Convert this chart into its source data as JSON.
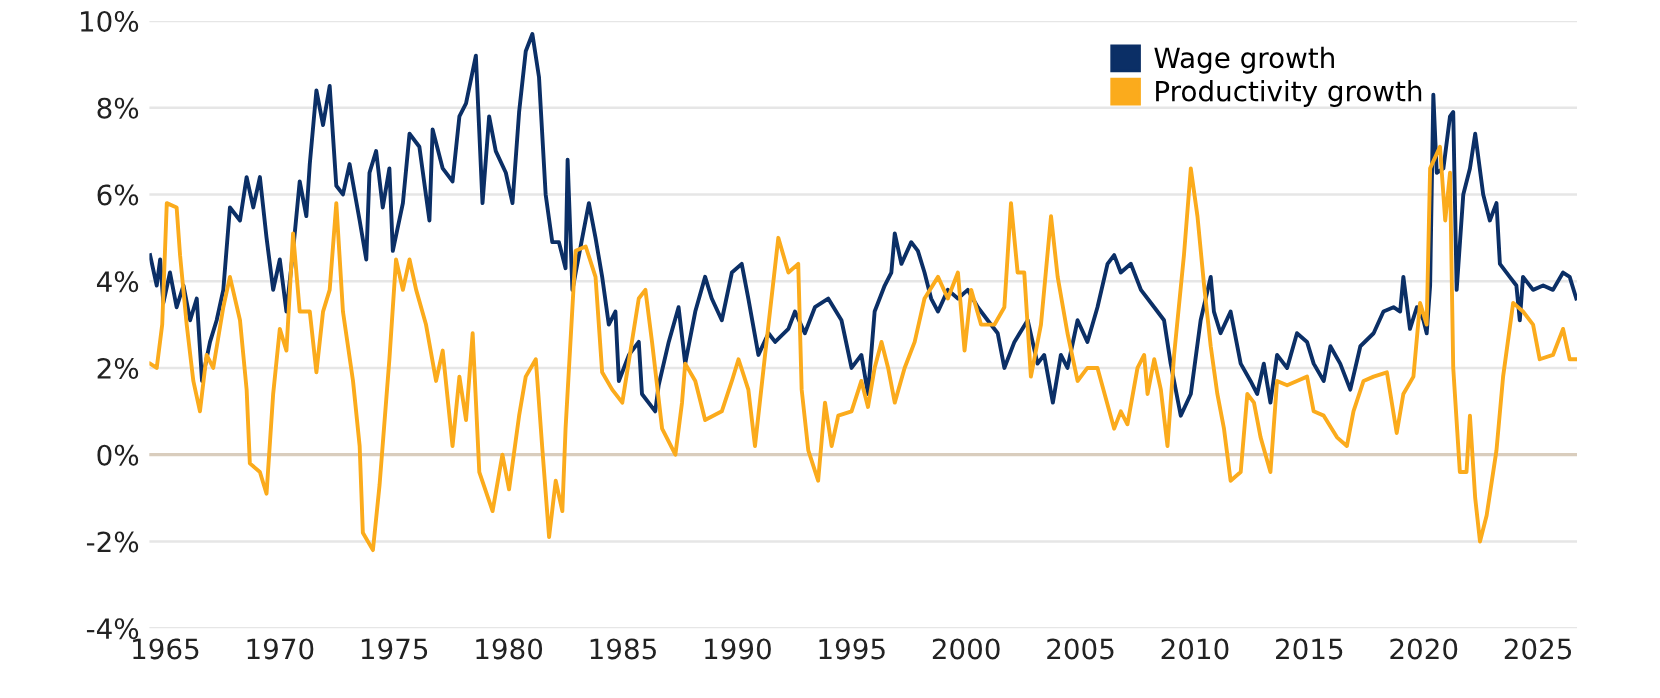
{
  "chart_data": {
    "type": "line",
    "xlim": [
      1964.3,
      2026.7
    ],
    "xticks": [
      1965,
      1970,
      1975,
      1980,
      1985,
      1990,
      1995,
      2000,
      2005,
      2010,
      2015,
      2020,
      2025
    ],
    "ylim": [
      -4,
      10
    ],
    "yticks": [
      {
        "value": -4,
        "label": "-4%"
      },
      {
        "value": -2,
        "label": "-2%"
      },
      {
        "value": 0,
        "label": "0%"
      },
      {
        "value": 2,
        "label": "2%"
      },
      {
        "value": 4,
        "label": "4%"
      },
      {
        "value": 6,
        "label": "6%"
      },
      {
        "value": 8,
        "label": "8%"
      },
      {
        "value": 10,
        "label": "10%"
      }
    ],
    "grid": "y",
    "legend": "top right",
    "marker": "none",
    "line_style": "solid",
    "ref_lines": [
      {
        "axis": "y",
        "value": 0,
        "color": "#d9cdbd"
      }
    ],
    "series": [
      {
        "name": "Wage growth",
        "color": "#0b2f66",
        "x": [
          1964.33,
          1964.62,
          1964.77,
          1964.91,
          1965.2,
          1965.49,
          1965.79,
          1966.08,
          1966.37,
          1966.6,
          1966.95,
          1967.24,
          1967.53,
          1967.82,
          1968.26,
          1968.55,
          1968.84,
          1969.13,
          1969.42,
          1969.71,
          1970.0,
          1970.29,
          1970.58,
          1970.87,
          1971.16,
          1971.31,
          1971.6,
          1971.89,
          1972.18,
          1972.47,
          1972.76,
          1973.05,
          1973.49,
          1973.78,
          1973.92,
          1974.21,
          1974.5,
          1974.79,
          1974.94,
          1975.38,
          1975.67,
          1976.1,
          1976.54,
          1976.68,
          1977.12,
          1977.55,
          1977.85,
          1978.14,
          1978.57,
          1978.86,
          1979.15,
          1979.44,
          1979.88,
          1980.17,
          1980.46,
          1980.75,
          1981.04,
          1981.33,
          1981.62,
          1981.91,
          1982.2,
          1982.49,
          1982.58,
          1982.79,
          1983.22,
          1983.51,
          1983.8,
          1984.09,
          1984.38,
          1984.67,
          1984.82,
          1985.26,
          1985.69,
          1985.83,
          1986.41,
          1986.56,
          1987.0,
          1987.43,
          1987.72,
          1988.16,
          1988.59,
          1988.88,
          1989.32,
          1989.76,
          1990.19,
          1990.48,
          1990.92,
          1991.36,
          1991.65,
          1992.23,
          1992.52,
          1992.95,
          1993.39,
          1993.97,
          1994.55,
          1994.99,
          1995.42,
          1995.71,
          1996.0,
          1996.44,
          1996.73,
          1996.88,
          1997.17,
          1997.6,
          1997.89,
          1998.18,
          1998.47,
          1998.77,
          1999.2,
          1999.64,
          2000.07,
          2000.51,
          2000.94,
          2001.38,
          2001.67,
          2002.11,
          2002.69,
          2003.12,
          2003.41,
          2003.79,
          2004.14,
          2004.43,
          2004.87,
          2005.3,
          2005.74,
          2006.18,
          2006.47,
          2006.76,
          2007.2,
          2007.64,
          2008.22,
          2008.65,
          2008.94,
          2009.38,
          2009.82,
          2010.25,
          2010.69,
          2010.83,
          2011.12,
          2011.56,
          2012.0,
          2012.43,
          2012.72,
          2013.01,
          2013.3,
          2013.59,
          2014.03,
          2014.46,
          2014.9,
          2015.19,
          2015.63,
          2015.92,
          2016.35,
          2016.79,
          2017.23,
          2017.81,
          2018.24,
          2018.68,
          2018.97,
          2019.11,
          2019.4,
          2019.7,
          2019.99,
          2020.13,
          2020.28,
          2020.42,
          2020.57,
          2020.86,
          2021.15,
          2021.29,
          2021.44,
          2021.73,
          2022.02,
          2022.25,
          2022.6,
          2022.89,
          2023.18,
          2023.33,
          2023.76,
          2024.05,
          2024.2,
          2024.34,
          2024.78,
          2025.22,
          2025.65,
          2026.09,
          2026.38,
          2026.67
        ],
        "values": [
          4.6,
          3.9,
          4.5,
          3.5,
          4.2,
          3.4,
          3.9,
          3.1,
          3.6,
          1.7,
          2.6,
          3.1,
          3.8,
          5.7,
          5.4,
          6.4,
          5.7,
          6.4,
          5.0,
          3.8,
          4.5,
          3.3,
          4.7,
          6.3,
          5.5,
          6.7,
          8.4,
          7.6,
          8.5,
          6.2,
          6.0,
          6.7,
          5.4,
          4.5,
          6.5,
          7.0,
          5.7,
          6.6,
          4.7,
          5.8,
          7.4,
          7.1,
          5.4,
          7.5,
          6.6,
          6.3,
          7.8,
          8.1,
          9.2,
          5.8,
          7.8,
          7.0,
          6.5,
          5.8,
          7.9,
          9.3,
          9.7,
          8.7,
          6.0,
          4.9,
          4.9,
          4.3,
          6.8,
          3.8,
          5.0,
          5.8,
          5.0,
          4.1,
          3.0,
          3.3,
          1.7,
          2.3,
          2.6,
          1.4,
          1.0,
          1.6,
          2.6,
          3.4,
          2.1,
          3.3,
          4.1,
          3.6,
          3.1,
          4.2,
          4.4,
          3.6,
          2.3,
          2.8,
          2.6,
          2.9,
          3.3,
          2.8,
          3.4,
          3.6,
          3.1,
          2.0,
          2.3,
          1.4,
          3.3,
          3.9,
          4.2,
          5.1,
          4.4,
          4.9,
          4.7,
          4.2,
          3.6,
          3.3,
          3.8,
          3.6,
          3.8,
          3.4,
          3.1,
          2.8,
          2.0,
          2.6,
          3.1,
          2.1,
          2.3,
          1.2,
          2.3,
          2.0,
          3.1,
          2.6,
          3.4,
          4.4,
          4.6,
          4.2,
          4.4,
          3.8,
          3.4,
          3.1,
          2.1,
          0.9,
          1.4,
          3.1,
          4.1,
          3.3,
          2.8,
          3.3,
          2.1,
          1.7,
          1.4,
          2.1,
          1.2,
          2.3,
          2.0,
          2.8,
          2.6,
          2.1,
          1.7,
          2.5,
          2.1,
          1.5,
          2.5,
          2.8,
          3.3,
          3.4,
          3.3,
          4.1,
          2.9,
          3.4,
          3.1,
          2.8,
          3.9,
          8.3,
          6.5,
          6.6,
          7.8,
          7.9,
          3.8,
          6.0,
          6.6,
          7.4,
          6.0,
          5.4,
          5.8,
          4.4,
          4.1,
          3.9,
          3.1,
          4.1,
          3.8,
          3.9,
          3.8,
          4.2,
          4.1,
          3.6
        ]
      },
      {
        "name": "Productivity growth",
        "color": "#fbab1c",
        "x": [
          1964.33,
          1964.62,
          1964.86,
          1965.06,
          1965.49,
          1965.64,
          1965.93,
          1966.22,
          1966.51,
          1966.8,
          1967.09,
          1967.53,
          1967.82,
          1968.26,
          1968.55,
          1968.69,
          1969.13,
          1969.42,
          1969.71,
          1970.0,
          1970.29,
          1970.58,
          1970.87,
          1971.31,
          1971.6,
          1971.89,
          1972.18,
          1972.47,
          1972.76,
          1973.2,
          1973.49,
          1973.63,
          1974.07,
          1974.36,
          1974.79,
          1975.08,
          1975.38,
          1975.67,
          1975.96,
          1976.39,
          1976.83,
          1977.12,
          1977.55,
          1977.85,
          1978.14,
          1978.43,
          1978.72,
          1979.3,
          1979.73,
          1980.02,
          1980.46,
          1980.75,
          1981.19,
          1981.48,
          1981.77,
          1982.06,
          1982.35,
          1982.49,
          1982.93,
          1983.37,
          1983.8,
          1984.09,
          1984.53,
          1984.97,
          1985.69,
          1985.98,
          1986.27,
          1986.71,
          1987.29,
          1987.58,
          1987.72,
          1988.16,
          1988.59,
          1989.32,
          1989.76,
          1990.05,
          1990.48,
          1990.77,
          1991.21,
          1991.79,
          1992.23,
          1992.66,
          1992.81,
          1993.1,
          1993.53,
          1993.83,
          1994.12,
          1994.41,
          1994.99,
          1995.42,
          1995.71,
          1996.0,
          1996.3,
          1996.59,
          1996.88,
          1997.31,
          1997.75,
          1998.18,
          1998.77,
          1999.2,
          1999.64,
          1999.93,
          2000.22,
          2000.65,
          2001.24,
          2001.67,
          2001.96,
          2002.25,
          2002.54,
          2002.83,
          2003.27,
          2003.71,
          2004.0,
          2004.43,
          2004.87,
          2005.3,
          2005.74,
          2006.47,
          2006.76,
          2007.05,
          2007.49,
          2007.78,
          2007.93,
          2008.22,
          2008.51,
          2008.8,
          2009.09,
          2009.52,
          2009.82,
          2010.11,
          2010.4,
          2010.69,
          2010.98,
          2011.27,
          2011.56,
          2012.0,
          2012.29,
          2012.58,
          2012.87,
          2013.3,
          2013.59,
          2014.03,
          2014.46,
          2014.9,
          2015.19,
          2015.63,
          2016.21,
          2016.64,
          2016.93,
          2017.37,
          2017.81,
          2018.39,
          2018.82,
          2019.11,
          2019.55,
          2019.84,
          2020.13,
          2020.28,
          2020.71,
          2020.94,
          2021.15,
          2021.29,
          2021.58,
          2021.87,
          2022.02,
          2022.25,
          2022.46,
          2022.75,
          2023.18,
          2023.47,
          2023.91,
          2024.34,
          2024.78,
          2025.07,
          2025.65,
          2026.09,
          2026.38,
          2026.67
        ],
        "values": [
          2.1,
          2.0,
          3.0,
          5.8,
          5.7,
          4.6,
          3.0,
          1.7,
          1.0,
          2.3,
          2.0,
          3.4,
          4.1,
          3.1,
          1.5,
          -0.2,
          -0.4,
          -0.9,
          1.4,
          2.9,
          2.4,
          5.1,
          3.3,
          3.3,
          1.9,
          3.3,
          3.8,
          5.8,
          3.3,
          1.7,
          0.2,
          -1.8,
          -2.2,
          -0.7,
          2.2,
          4.5,
          3.8,
          4.5,
          3.8,
          3.0,
          1.7,
          2.4,
          0.2,
          1.8,
          0.8,
          2.8,
          -0.4,
          -1.3,
          0.0,
          -0.8,
          0.9,
          1.8,
          2.2,
          0.1,
          -1.9,
          -0.6,
          -1.3,
          0.6,
          4.7,
          4.8,
          4.1,
          1.9,
          1.5,
          1.2,
          3.6,
          3.8,
          2.6,
          0.6,
          0.0,
          1.2,
          2.1,
          1.7,
          0.8,
          1.0,
          1.7,
          2.2,
          1.5,
          0.2,
          2.3,
          5.0,
          4.2,
          4.4,
          1.5,
          0.1,
          -0.6,
          1.2,
          0.2,
          0.9,
          1.0,
          1.7,
          1.1,
          2.0,
          2.6,
          2.0,
          1.2,
          2.0,
          2.6,
          3.6,
          4.1,
          3.6,
          4.2,
          2.4,
          3.8,
          3.0,
          3.0,
          3.4,
          5.8,
          4.2,
          4.2,
          1.8,
          3.0,
          5.5,
          4.1,
          2.8,
          1.7,
          2.0,
          2.0,
          0.6,
          1.0,
          0.7,
          2.0,
          2.3,
          1.4,
          2.2,
          1.5,
          0.2,
          2.3,
          4.6,
          6.6,
          5.5,
          3.9,
          2.5,
          1.4,
          0.6,
          -0.6,
          -0.4,
          1.4,
          1.2,
          0.4,
          -0.4,
          1.7,
          1.6,
          1.7,
          1.8,
          1.0,
          0.9,
          0.4,
          0.2,
          1.0,
          1.7,
          1.8,
          1.9,
          0.5,
          1.4,
          1.8,
          3.5,
          3.0,
          6.6,
          7.1,
          5.4,
          6.5,
          2.0,
          -0.4,
          -0.4,
          0.9,
          -1.0,
          -2.0,
          -1.4,
          0.1,
          1.8,
          3.5,
          3.3,
          3.0,
          2.2,
          2.3,
          2.9,
          2.2,
          2.2
        ]
      }
    ]
  }
}
